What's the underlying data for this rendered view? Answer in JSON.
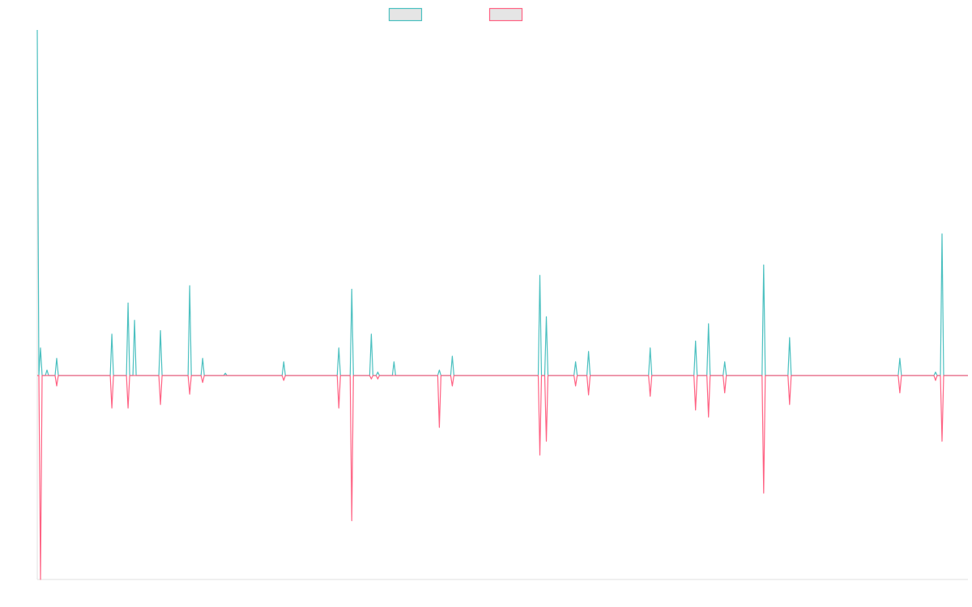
{
  "chart_data": {
    "type": "line",
    "title": "",
    "xlabel": "",
    "ylabel": "",
    "xlim": [
      0,
      287
    ],
    "ylim": [
      -59,
      100
    ],
    "grid": false,
    "legend_position": "top-center",
    "series": [
      {
        "name": "",
        "color": "#4bc0c0",
        "fill": "#e5e5e5",
        "points": [
          [
            0,
            100
          ],
          [
            1,
            8
          ],
          [
            3,
            1.6
          ],
          [
            6,
            5
          ],
          [
            23,
            12
          ],
          [
            28,
            21
          ],
          [
            30,
            16
          ],
          [
            38,
            13
          ],
          [
            47,
            26
          ],
          [
            51,
            5
          ],
          [
            58,
            0.7
          ],
          [
            76,
            4
          ],
          [
            93,
            8
          ],
          [
            97,
            25
          ],
          [
            103,
            12
          ],
          [
            105,
            1
          ],
          [
            110,
            4
          ],
          [
            124,
            1.6
          ],
          [
            128,
            5.6
          ],
          [
            155,
            29
          ],
          [
            157,
            17
          ],
          [
            166,
            4
          ],
          [
            170,
            7
          ],
          [
            189,
            8
          ],
          [
            203,
            10
          ],
          [
            207,
            15
          ],
          [
            212,
            4
          ],
          [
            224,
            32
          ],
          [
            232,
            11
          ],
          [
            266,
            5
          ],
          [
            277,
            1
          ],
          [
            279,
            41
          ]
        ]
      },
      {
        "name": "",
        "color": "#ff6384",
        "fill": "#e5e5e5",
        "points": [
          [
            1,
            -59
          ],
          [
            6,
            -3
          ],
          [
            23,
            -9.4
          ],
          [
            28,
            -9.4
          ],
          [
            38,
            -8.4
          ],
          [
            47,
            -5.4
          ],
          [
            51,
            -2
          ],
          [
            76,
            -1.4
          ],
          [
            93,
            -9.4
          ],
          [
            97,
            -42
          ],
          [
            103,
            -1
          ],
          [
            105,
            -1
          ],
          [
            124,
            -15
          ],
          [
            128,
            -3
          ],
          [
            155,
            -23
          ],
          [
            157,
            -19
          ],
          [
            166,
            -3
          ],
          [
            170,
            -5.6
          ],
          [
            189,
            -6
          ],
          [
            203,
            -10
          ],
          [
            207,
            -12
          ],
          [
            212,
            -5
          ],
          [
            224,
            -34
          ],
          [
            232,
            -8.4
          ],
          [
            266,
            -5
          ],
          [
            277,
            -1.4
          ],
          [
            279,
            -19
          ]
        ]
      }
    ]
  }
}
